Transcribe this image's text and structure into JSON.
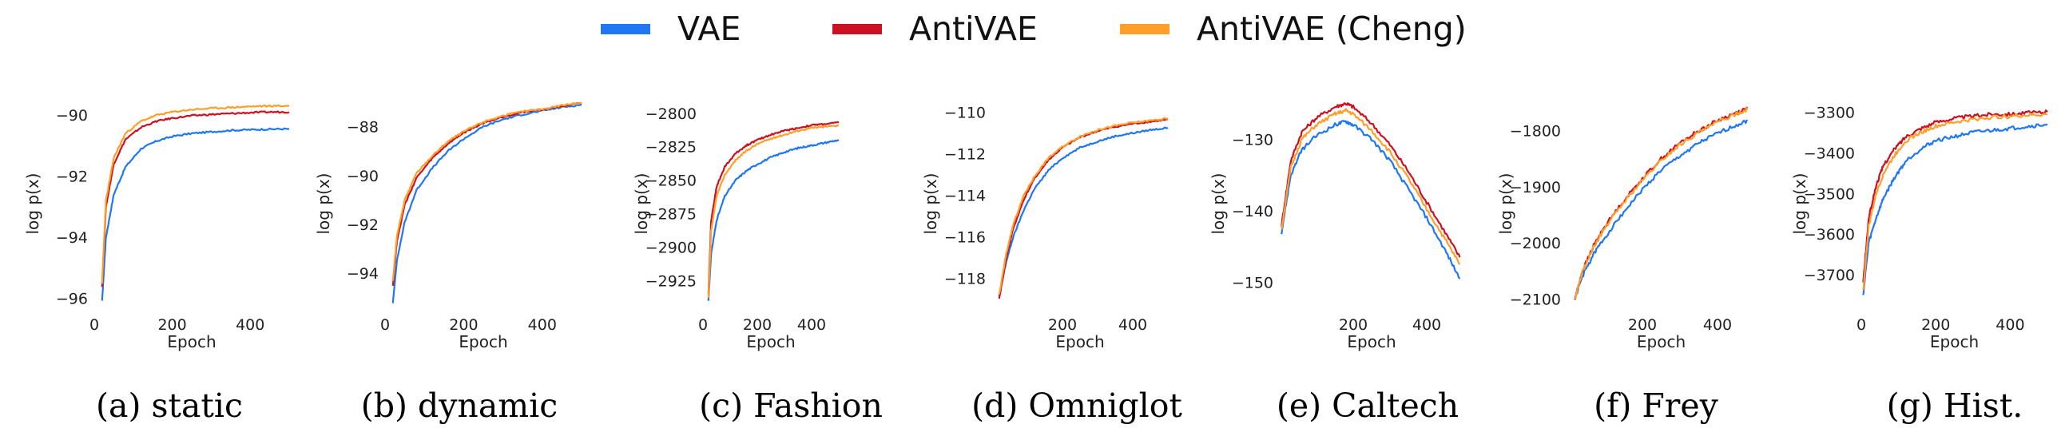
{
  "legend": {
    "items": [
      {
        "label": "VAE",
        "color": "#1f77f4"
      },
      {
        "label": "AntiVAE",
        "color": "#cc1122"
      },
      {
        "label": "AntiVAE (Cheng)",
        "color": "#ff9f2a"
      }
    ]
  },
  "chart_data": [
    {
      "type": "line",
      "caption": "(a) static",
      "xlabel": "Epoch",
      "ylabel": "log p(x)",
      "xlim": [
        0,
        500
      ],
      "ylim": [
        -96.3,
        -89.5
      ],
      "xticks": [
        0,
        200,
        400
      ],
      "yticks": [
        -96,
        -94,
        -92,
        -90
      ],
      "series": [
        {
          "name": "VAE",
          "x": [
            20,
            30,
            50,
            80,
            120,
            160,
            200,
            250,
            300,
            350,
            400,
            450,
            500
          ],
          "y": [
            -96.1,
            -94.0,
            -92.6,
            -91.7,
            -91.1,
            -90.85,
            -90.7,
            -90.6,
            -90.55,
            -90.5,
            -90.48,
            -90.46,
            -90.45
          ]
        },
        {
          "name": "AntiVAE",
          "x": [
            20,
            30,
            50,
            80,
            120,
            160,
            200,
            250,
            300,
            350,
            400,
            450,
            500
          ],
          "y": [
            -95.6,
            -93.0,
            -91.6,
            -90.8,
            -90.4,
            -90.2,
            -90.1,
            -90.02,
            -89.98,
            -89.95,
            -89.92,
            -89.9,
            -89.9
          ]
        },
        {
          "name": "AntiVAE (Cheng)",
          "x": [
            20,
            30,
            50,
            80,
            120,
            160,
            200,
            250,
            300,
            350,
            400,
            450,
            500
          ],
          "y": [
            -95.5,
            -92.8,
            -91.4,
            -90.6,
            -90.2,
            -90.0,
            -89.9,
            -89.82,
            -89.78,
            -89.75,
            -89.72,
            -89.7,
            -89.7
          ]
        }
      ]
    },
    {
      "type": "line",
      "caption": "(b) dynamic",
      "xlabel": "Epoch",
      "ylabel": "log p(x)",
      "xlim": [
        0,
        500
      ],
      "ylim": [
        -95.4,
        -86.9
      ],
      "xticks": [
        0,
        200,
        400
      ],
      "yticks": [
        -94,
        -92,
        -90,
        -88
      ],
      "series": [
        {
          "name": "VAE",
          "x": [
            20,
            30,
            50,
            80,
            120,
            160,
            200,
            250,
            300,
            350,
            400,
            450,
            500
          ],
          "y": [
            -95.2,
            -93.5,
            -91.9,
            -90.6,
            -89.7,
            -89.0,
            -88.5,
            -88.0,
            -87.7,
            -87.5,
            -87.35,
            -87.2,
            -87.1
          ]
        },
        {
          "name": "AntiVAE",
          "x": [
            20,
            30,
            50,
            80,
            120,
            160,
            200,
            250,
            300,
            350,
            400,
            450,
            500
          ],
          "y": [
            -94.5,
            -92.7,
            -91.2,
            -90.1,
            -89.3,
            -88.7,
            -88.25,
            -87.85,
            -87.6,
            -87.4,
            -87.3,
            -87.15,
            -87.05
          ]
        },
        {
          "name": "AntiVAE (Cheng)",
          "x": [
            20,
            30,
            50,
            80,
            120,
            160,
            200,
            250,
            300,
            350,
            400,
            450,
            500
          ],
          "y": [
            -94.3,
            -92.5,
            -91.0,
            -89.9,
            -89.2,
            -88.6,
            -88.2,
            -87.8,
            -87.55,
            -87.38,
            -87.28,
            -87.12,
            -87.02
          ]
        }
      ]
    },
    {
      "type": "line",
      "caption": "(c) Fashion",
      "xlabel": "Epoch",
      "ylabel": "log p(x)",
      "xlim": [
        0,
        500
      ],
      "ylim": [
        -2945,
        -2790
      ],
      "xticks": [
        0,
        200,
        400
      ],
      "yticks": [
        -2925,
        -2900,
        -2875,
        -2850,
        -2825,
        -2800
      ],
      "series": [
        {
          "name": "VAE",
          "x": [
            20,
            30,
            50,
            80,
            120,
            160,
            200,
            250,
            300,
            350,
            400,
            450,
            500
          ],
          "y": [
            -2940,
            -2905,
            -2880,
            -2862,
            -2850,
            -2843,
            -2838,
            -2833,
            -2829,
            -2826,
            -2824,
            -2822,
            -2820
          ]
        },
        {
          "name": "AntiVAE",
          "x": [
            20,
            30,
            50,
            80,
            120,
            160,
            200,
            250,
            300,
            350,
            400,
            450,
            500
          ],
          "y": [
            -2935,
            -2880,
            -2855,
            -2840,
            -2830,
            -2824,
            -2820,
            -2816,
            -2813,
            -2811,
            -2809,
            -2808,
            -2807
          ]
        },
        {
          "name": "AntiVAE (Cheng)",
          "x": [
            20,
            30,
            50,
            80,
            120,
            160,
            200,
            250,
            300,
            350,
            400,
            450,
            500
          ],
          "y": [
            -2938,
            -2888,
            -2862,
            -2846,
            -2835,
            -2828,
            -2823,
            -2819,
            -2816,
            -2813,
            -2811,
            -2810,
            -2809
          ]
        }
      ]
    },
    {
      "type": "line",
      "caption": "(d) Omniglot",
      "xlabel": "Epoch",
      "ylabel": "log p(x)",
      "xlim": [
        0,
        500
      ],
      "ylim": [
        -119.4,
        -109.4
      ],
      "xticks": [
        200,
        400
      ],
      "yticks": [
        -118,
        -116,
        -114,
        -112,
        -110
      ],
      "series": [
        {
          "name": "VAE",
          "x": [
            20,
            40,
            60,
            90,
            120,
            160,
            200,
            250,
            300,
            350,
            400,
            450,
            500
          ],
          "y": [
            -118.9,
            -117.2,
            -116.0,
            -114.7,
            -113.7,
            -112.8,
            -112.2,
            -111.7,
            -111.4,
            -111.15,
            -111.0,
            -110.85,
            -110.75
          ]
        },
        {
          "name": "AntiVAE",
          "x": [
            20,
            40,
            60,
            90,
            120,
            160,
            200,
            250,
            300,
            350,
            400,
            450,
            500
          ],
          "y": [
            -119.0,
            -117.0,
            -115.6,
            -114.2,
            -113.2,
            -112.3,
            -111.7,
            -111.2,
            -110.9,
            -110.7,
            -110.55,
            -110.45,
            -110.35
          ]
        },
        {
          "name": "AntiVAE (Cheng)",
          "x": [
            20,
            40,
            60,
            90,
            120,
            160,
            200,
            250,
            300,
            350,
            400,
            450,
            500
          ],
          "y": [
            -118.8,
            -116.8,
            -115.4,
            -114.0,
            -113.1,
            -112.2,
            -111.65,
            -111.15,
            -110.85,
            -110.65,
            -110.5,
            -110.4,
            -110.3
          ]
        }
      ]
    },
    {
      "type": "line",
      "caption": "(e) Caltech",
      "xlabel": "Epoch",
      "ylabel": "log p(x)",
      "xlim": [
        0,
        500
      ],
      "ylim": [
        -153.5,
        -124.5
      ],
      "xticks": [
        200,
        400
      ],
      "yticks": [
        -150,
        -140,
        -130
      ],
      "series": [
        {
          "name": "VAE",
          "x": [
            5,
            30,
            60,
            100,
            150,
            180,
            200,
            250,
            300,
            350,
            400,
            450,
            490
          ],
          "y": [
            -143,
            -135,
            -131.5,
            -129.5,
            -128.0,
            -127.5,
            -128.0,
            -130.0,
            -133.0,
            -137.0,
            -141.0,
            -145.5,
            -149.5
          ]
        },
        {
          "name": "AntiVAE",
          "x": [
            5,
            30,
            60,
            100,
            150,
            180,
            200,
            250,
            300,
            350,
            400,
            450,
            490
          ],
          "y": [
            -142,
            -133,
            -129.0,
            -127.0,
            -125.5,
            -125.0,
            -125.5,
            -127.8,
            -130.8,
            -134.5,
            -138.8,
            -143.0,
            -146.5
          ]
        },
        {
          "name": "AntiVAE (Cheng)",
          "x": [
            5,
            30,
            60,
            100,
            150,
            180,
            200,
            250,
            300,
            350,
            400,
            450,
            490
          ],
          "y": [
            -142.5,
            -134,
            -130.0,
            -128.0,
            -126.5,
            -126.0,
            -126.5,
            -128.8,
            -131.8,
            -135.5,
            -139.8,
            -144.0,
            -147.5
          ]
        }
      ]
    },
    {
      "type": "line",
      "caption": "(f) Frey",
      "xlabel": "Epoch",
      "ylabel": "log p(x)",
      "xlim": [
        0,
        500
      ],
      "ylim": [
        -2115,
        -1745
      ],
      "xticks": [
        200,
        400
      ],
      "yticks": [
        -2100,
        -2000,
        -1900,
        -1800
      ],
      "series": [
        {
          "name": "VAE",
          "x": [
            20,
            40,
            70,
            100,
            150,
            200,
            250,
            300,
            350,
            400,
            450,
            480
          ],
          "y": [
            -2100,
            -2060,
            -2020,
            -1990,
            -1945,
            -1905,
            -1870,
            -1845,
            -1822,
            -1805,
            -1790,
            -1782
          ]
        },
        {
          "name": "AntiVAE",
          "x": [
            20,
            40,
            70,
            100,
            150,
            200,
            250,
            300,
            350,
            400,
            450,
            480
          ],
          "y": [
            -2100,
            -2050,
            -2005,
            -1970,
            -1925,
            -1885,
            -1850,
            -1822,
            -1800,
            -1782,
            -1768,
            -1760
          ]
        },
        {
          "name": "AntiVAE (Cheng)",
          "x": [
            20,
            40,
            70,
            100,
            150,
            200,
            250,
            300,
            350,
            400,
            450,
            480
          ],
          "y": [
            -2100,
            -2052,
            -2008,
            -1973,
            -1928,
            -1888,
            -1853,
            -1825,
            -1803,
            -1785,
            -1770,
            -1762
          ]
        }
      ]
    },
    {
      "type": "line",
      "caption": "(g) Hist.",
      "xlabel": "Epoch",
      "ylabel": "log p(x)",
      "xlim": [
        0,
        500
      ],
      "ylim": [
        -3780,
        -3270
      ],
      "xticks": [
        0,
        200,
        400
      ],
      "yticks": [
        -3700,
        -3600,
        -3500,
        -3400,
        -3300
      ],
      "series": [
        {
          "name": "VAE",
          "x": [
            5,
            20,
            40,
            60,
            90,
            120,
            160,
            200,
            250,
            300,
            350,
            400,
            450,
            500
          ],
          "y": [
            -3750,
            -3620,
            -3560,
            -3510,
            -3460,
            -3420,
            -3390,
            -3370,
            -3360,
            -3350,
            -3345,
            -3340,
            -3335,
            -3330
          ]
        },
        {
          "name": "AntiVAE",
          "x": [
            5,
            20,
            40,
            60,
            90,
            120,
            160,
            200,
            250,
            300,
            350,
            400,
            450,
            500
          ],
          "y": [
            -3720,
            -3560,
            -3480,
            -3430,
            -3390,
            -3360,
            -3340,
            -3325,
            -3315,
            -3310,
            -3305,
            -3305,
            -3302,
            -3300
          ]
        },
        {
          "name": "AntiVAE (Cheng)",
          "x": [
            5,
            20,
            40,
            60,
            90,
            120,
            160,
            200,
            250,
            300,
            350,
            400,
            450,
            500
          ],
          "y": [
            -3740,
            -3580,
            -3500,
            -3450,
            -3405,
            -3370,
            -3350,
            -3335,
            -3325,
            -3318,
            -3313,
            -3310,
            -3308,
            -3306
          ]
        }
      ]
    }
  ]
}
